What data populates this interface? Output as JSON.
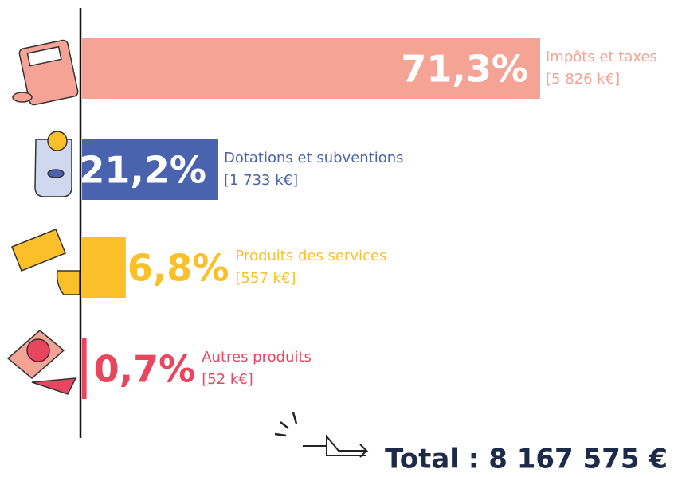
{
  "chart_data": {
    "type": "bar",
    "categories": [
      "Impôts et taxes",
      "Dotations et subventions",
      "Produits des services",
      "Autres produits"
    ],
    "amounts": [
      "[5 826 k€]",
      "[1 733 k€]",
      "[557 k€]",
      "[52 k€]"
    ],
    "values": [
      71.3,
      21.2,
      6.8,
      0.7
    ],
    "value_labels": [
      "71,3%",
      "21,2%",
      "6,8%",
      "0,7%"
    ],
    "colors": [
      "#f4a394",
      "#4a63ae",
      "#fbbf2a",
      "#e8455e"
    ],
    "total": "Total : 8 167 575 €"
  }
}
